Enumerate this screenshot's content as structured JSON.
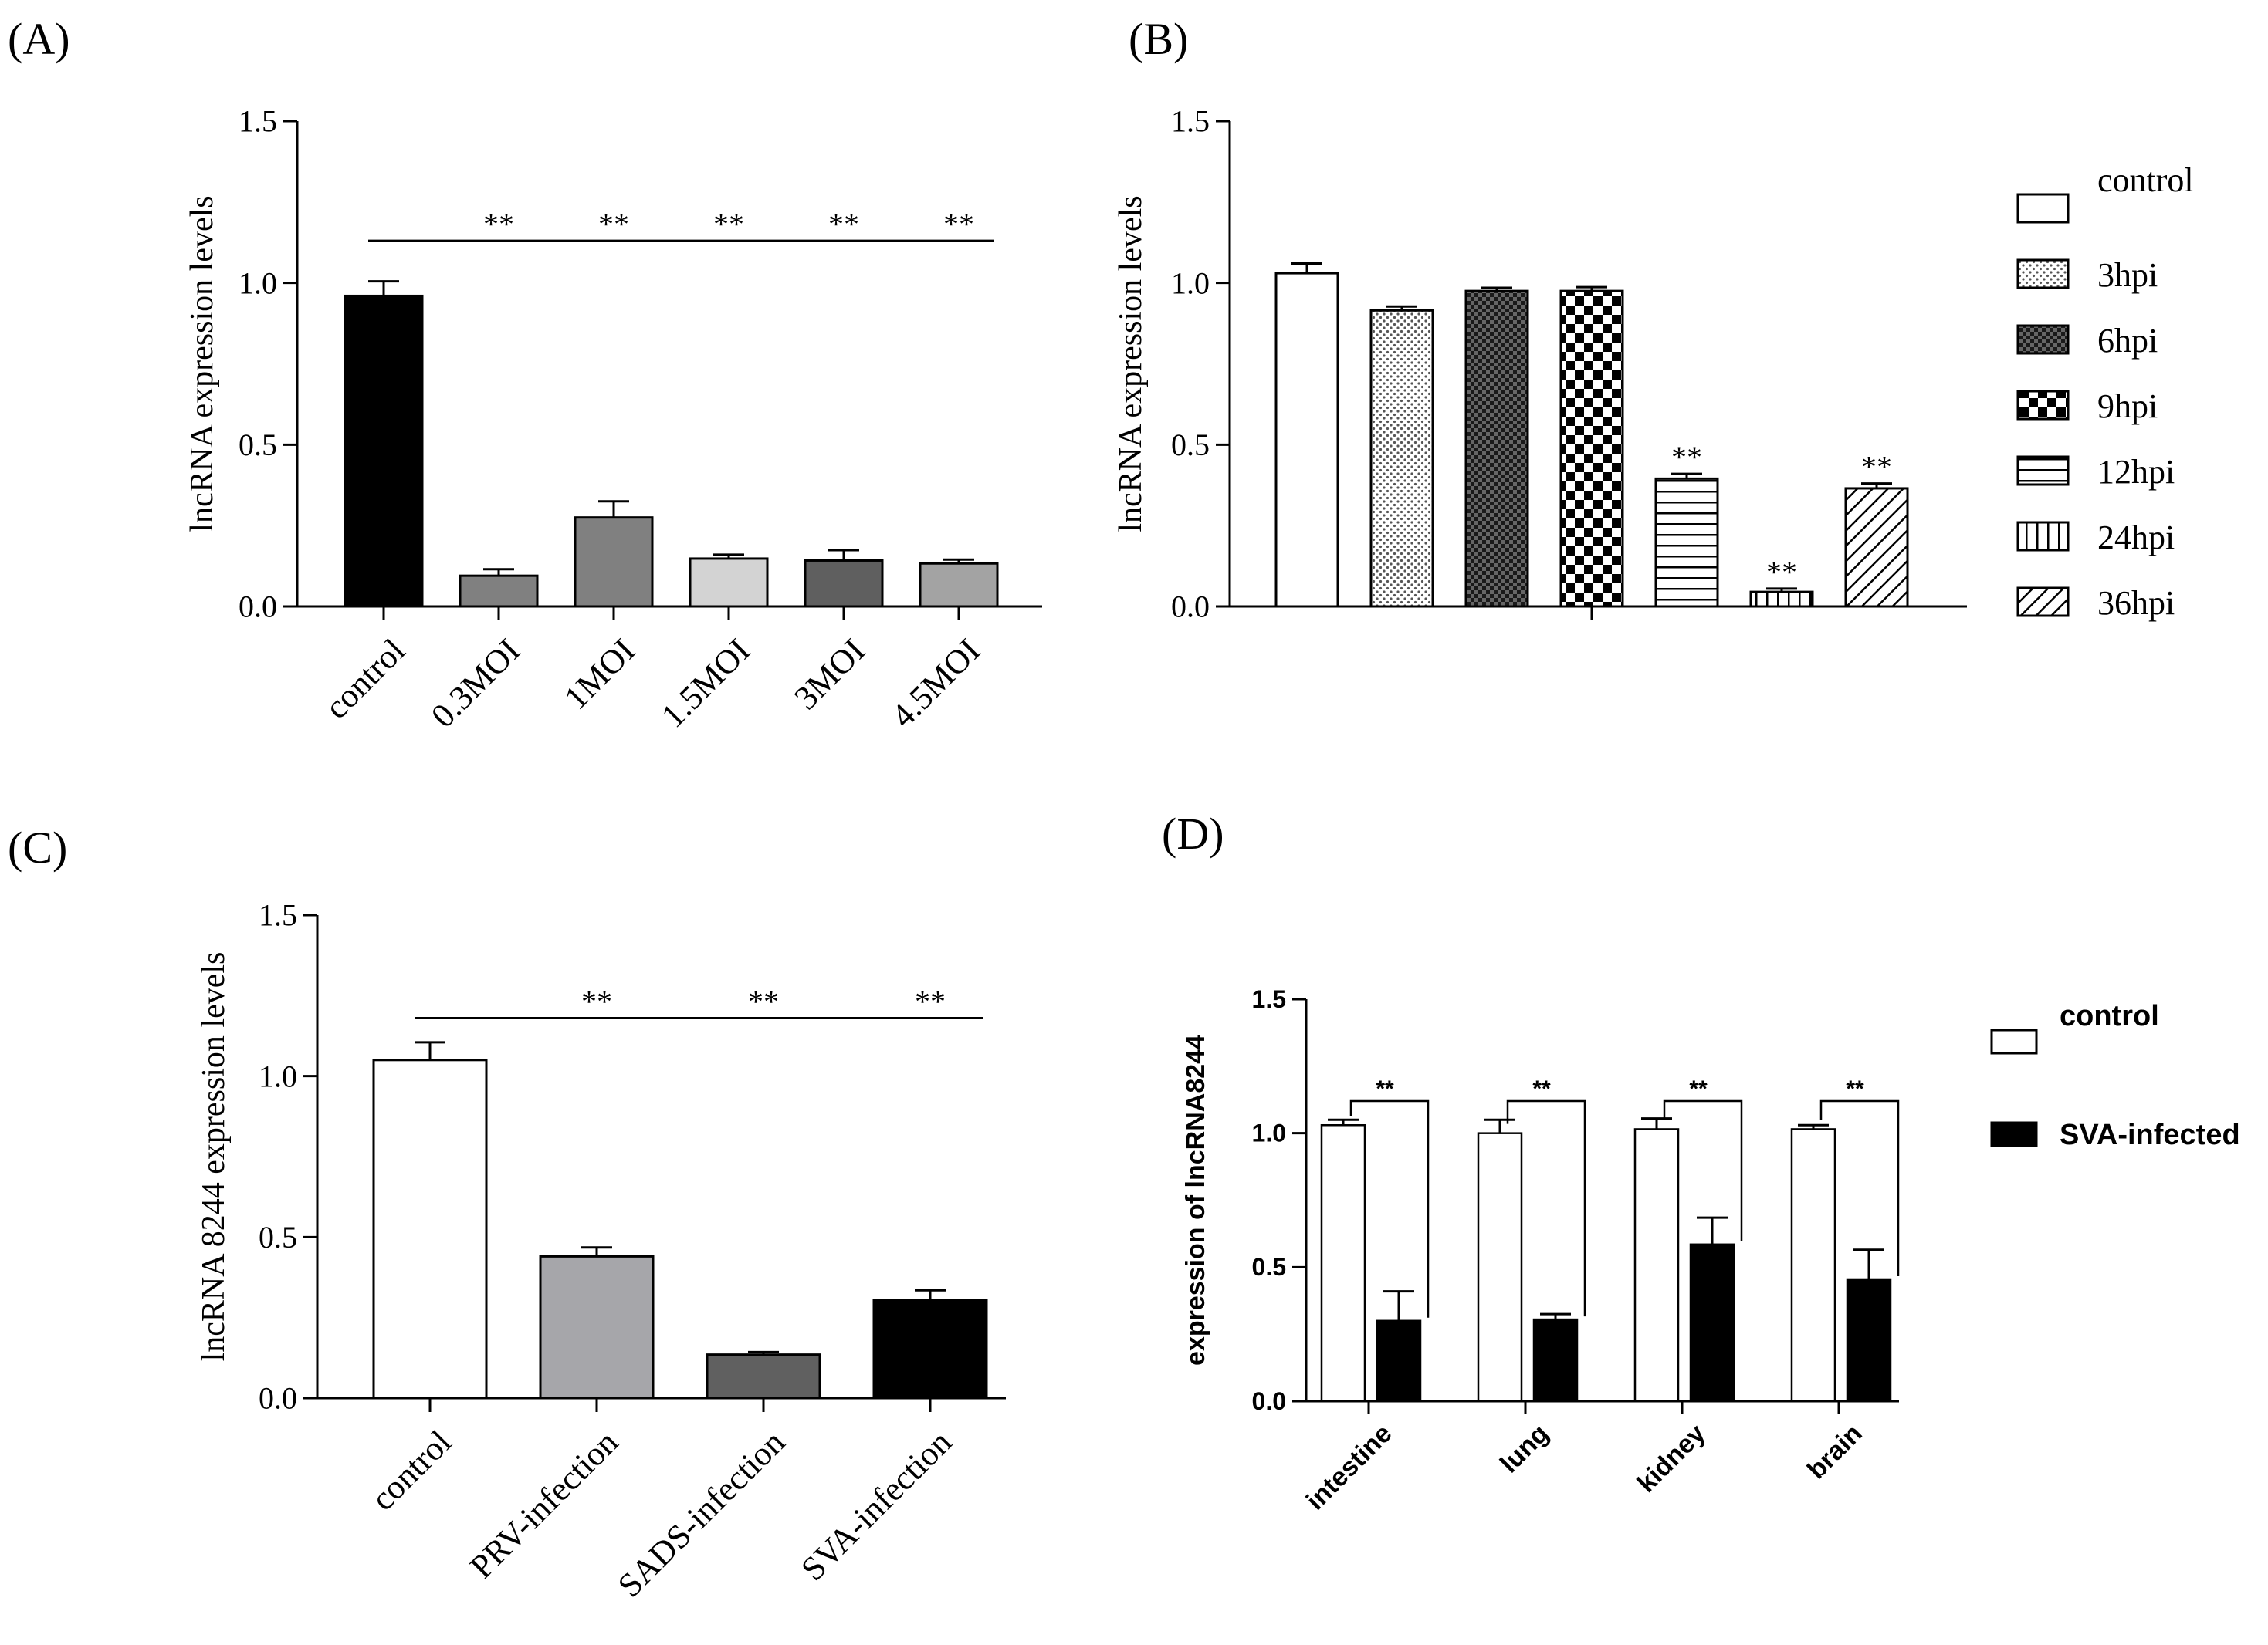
{
  "chart_data": [
    {
      "panel": "(A)",
      "type": "bar",
      "ylabel": "lncRNA expression levels",
      "ylim": [
        0,
        1.5
      ],
      "yticks": [
        "0.0",
        "0.5",
        "1.0",
        "1.5"
      ],
      "categories": [
        "control",
        "0.3MOI",
        "1MOI",
        "1.5MOI",
        "3MOI",
        "4.5MOI"
      ],
      "values": [
        0.96,
        0.095,
        0.275,
        0.148,
        0.142,
        0.133
      ],
      "errors": [
        0.045,
        0.02,
        0.05,
        0.012,
        0.032,
        0.012
      ],
      "colors": [
        "#000000",
        "#808080",
        "#808080",
        "#d3d3d3",
        "#5f5f5f",
        "#a3a3a3"
      ],
      "significance": [
        "",
        "**",
        "**",
        "**",
        "**",
        "**"
      ],
      "bracket_y": 1.13
    },
    {
      "panel": "(B)",
      "type": "bar",
      "ylabel": "lncRNA expression levels",
      "ylim": [
        0,
        1.5
      ],
      "yticks": [
        "0.0",
        "0.5",
        "1.0",
        "1.5"
      ],
      "categories": [
        "control",
        "3hpi",
        "6hpi",
        "9hpi",
        "12hpi",
        "24hpi",
        "36hpi"
      ],
      "values": [
        1.03,
        0.915,
        0.975,
        0.975,
        0.395,
        0.045,
        0.365
      ],
      "errors": [
        0.03,
        0.012,
        0.01,
        0.012,
        0.015,
        0.01,
        0.015
      ],
      "patterns": [
        "none",
        "dots",
        "dark-check",
        "checker",
        "hlines",
        "vlines",
        "diag"
      ],
      "significance": [
        "",
        "",
        "",
        "",
        "**",
        "**",
        "**"
      ]
    },
    {
      "panel": "(C)",
      "type": "bar",
      "ylabel": "lncRNA 8244 expression levels",
      "ylim": [
        0,
        1.5
      ],
      "yticks": [
        "0.0",
        "0.5",
        "1.0",
        "1.5"
      ],
      "categories": [
        "control",
        "PRV-infection",
        "SADS-infection",
        "SVA-infection"
      ],
      "values": [
        1.05,
        0.44,
        0.135,
        0.305
      ],
      "errors": [
        0.055,
        0.028,
        0.008,
        0.03
      ],
      "colors": [
        "#ffffff",
        "#a6a6aa",
        "#606060",
        "#000000"
      ],
      "significance": [
        "",
        "**",
        "**",
        "**"
      ],
      "bracket_y": 1.18
    },
    {
      "panel": "(D)",
      "type": "bar",
      "ylabel": "expression of lncRNA8244",
      "ylim": [
        0,
        1.5
      ],
      "yticks": [
        "0.0",
        "0.5",
        "1.0",
        "1.5"
      ],
      "categories": [
        "intestine",
        "lung",
        "kidney",
        "brain"
      ],
      "series": [
        {
          "name": "control",
          "values": [
            1.03,
            1.0,
            1.015,
            1.015
          ],
          "errors": [
            0.02,
            0.05,
            0.04,
            0.015
          ],
          "color": "#ffffff"
        },
        {
          "name": "SVA-infected",
          "values": [
            0.3,
            0.305,
            0.585,
            0.455
          ],
          "errors": [
            0.11,
            0.02,
            0.1,
            0.11
          ],
          "color": "#000000"
        }
      ],
      "significance": [
        "**",
        "**",
        "**",
        "**"
      ],
      "bracket_y": 1.12
    }
  ]
}
